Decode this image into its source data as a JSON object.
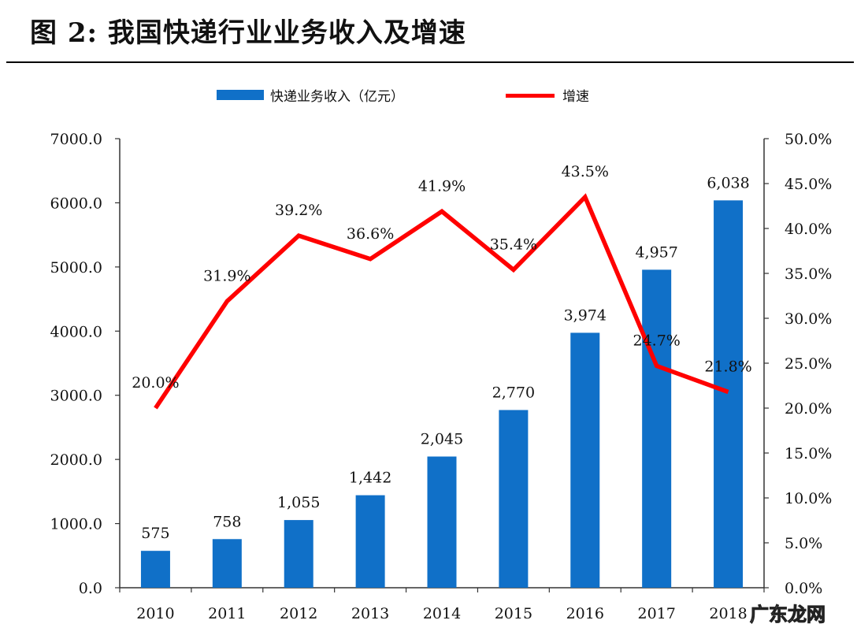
{
  "title": "图 2: 我国快递行业业务收入及增速",
  "watermark": "广东龙网",
  "chart_data": {
    "type": "bar",
    "categories": [
      "2010",
      "2011",
      "2012",
      "2013",
      "2014",
      "2015",
      "2016",
      "2017",
      "2018"
    ],
    "series": [
      {
        "name": "快递业务收入（亿元）",
        "type": "bar",
        "axis": "left",
        "color": "#1070C8",
        "values": [
          575,
          758,
          1055,
          1442,
          2045,
          2770,
          3974,
          4957,
          6038
        ],
        "labels": [
          "575",
          "758",
          "1,055",
          "1,442",
          "2,045",
          "2,770",
          "3,974",
          "4,957",
          "6,038"
        ]
      },
      {
        "name": "增速",
        "type": "line",
        "axis": "right",
        "color": "#FF0000",
        "values": [
          20.0,
          31.9,
          39.2,
          36.6,
          41.9,
          35.4,
          43.5,
          24.7,
          21.8
        ],
        "labels": [
          "20.0%",
          "31.9%",
          "39.2%",
          "36.6%",
          "41.9%",
          "35.4%",
          "43.5%",
          "24.7%",
          "21.8%"
        ]
      }
    ],
    "y_left": {
      "ylim": [
        0,
        7000
      ],
      "ticks": [
        "0.0",
        "1000.0",
        "2000.0",
        "3000.0",
        "4000.0",
        "5000.0",
        "6000.0",
        "7000.0"
      ]
    },
    "y_right": {
      "ylim": [
        0,
        50
      ],
      "ticks": [
        "0.0%",
        "5.0%",
        "10.0%",
        "15.0%",
        "20.0%",
        "25.0%",
        "30.0%",
        "35.0%",
        "40.0%",
        "45.0%",
        "50.0%"
      ]
    },
    "legend_position": "top-center",
    "grid": false
  }
}
